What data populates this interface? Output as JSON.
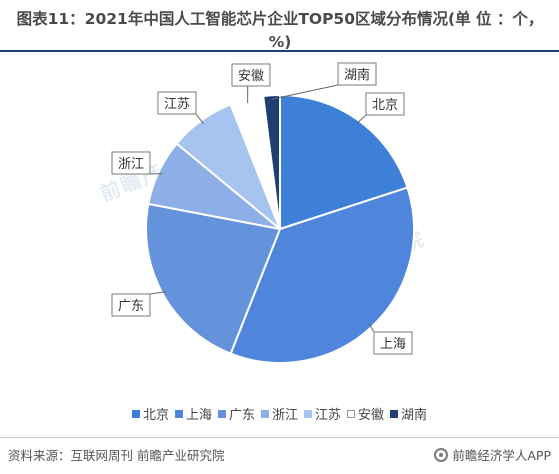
{
  "title": "图表11：2021年中国人工智能芯片企业TOP50区域分布情况(单 位 ：个，%)",
  "chart_data": {
    "type": "pie",
    "categories": [
      "北京",
      "上海",
      "广东",
      "浙江",
      "江苏",
      "安徽",
      "湖南"
    ],
    "values": [
      20,
      36,
      22,
      8,
      8,
      4,
      2
    ],
    "colors": [
      "#3e7fd8",
      "#4f86dc",
      "#6593db",
      "#8daee6",
      "#a7c3f0",
      "#ffffff",
      "#1f3f73"
    ],
    "start_angle_deg": 0,
    "direction": "clockwise",
    "labels_style": "callout boxes",
    "legend_position": "bottom"
  },
  "watermark_text": "前瞻产业研究院",
  "source_note": "资料来源：互联网周刊 前瞻产业研究院",
  "brand": {
    "name": "前瞻经济学人APP",
    "icon": "qianzhan-logo-icon"
  }
}
